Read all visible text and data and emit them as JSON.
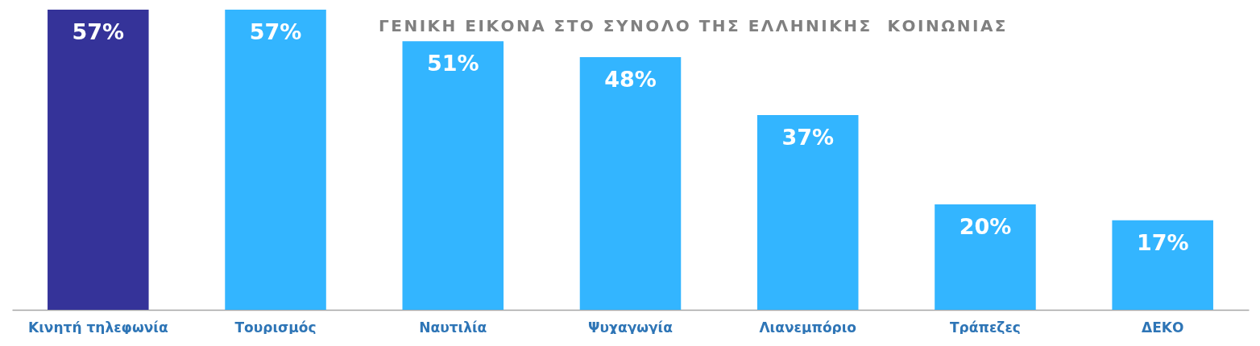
{
  "chart_data": {
    "type": "bar",
    "title": "ΓΕΝΙΚΗ ΕΙΚΟΝΑ ΣΤΟ ΣΥΝΟΛΟ ΤΗΣ ΕΛΛΗΝΙΚΗΣ  ΚΟΙΝΩΝΙΑΣ",
    "categories": [
      "Κινητή τηλεφωνία",
      "Τουρισμός",
      "Ναυτιλία",
      "Ψυχαγωγία",
      "Λιανεμπόριο",
      "Τράπεζες",
      "ΔΕΚΟ"
    ],
    "values": [
      57,
      57,
      51,
      48,
      37,
      20,
      17
    ],
    "colors": [
      "#353399",
      "#33b5ff",
      "#33b5ff",
      "#33b5ff",
      "#33b5ff",
      "#33b5ff",
      "#33b5ff"
    ],
    "value_labels": [
      "57%",
      "57%",
      "51%",
      "48%",
      "37%",
      "20%",
      "17%"
    ],
    "tick_labels": "x"
  }
}
